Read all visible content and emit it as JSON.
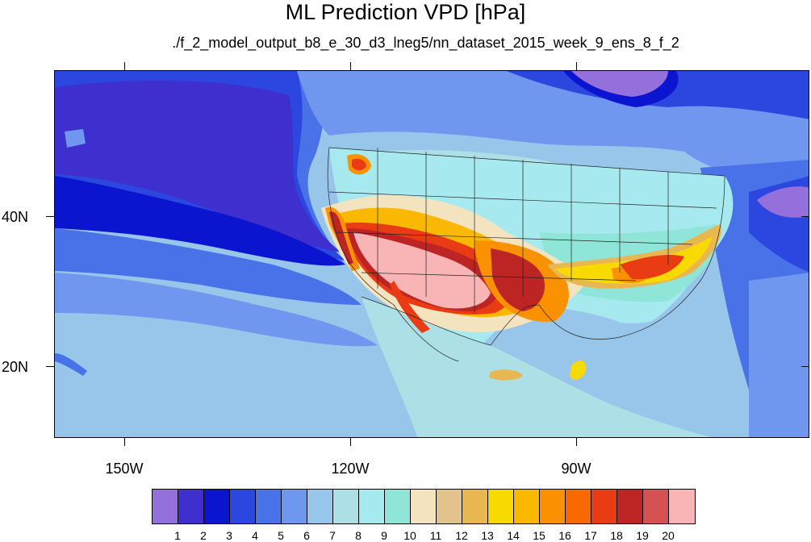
{
  "title": "ML Prediction VPD [hPa]",
  "subtitle": "./f_2_model_output_b8_e_30_d3_lneg5/nn_dataset_2015_week_9_ens_8_f_2",
  "lon_labels": [
    "150W",
    "120W",
    "90W"
  ],
  "lat_labels": [
    "40N",
    "20N"
  ],
  "colorbar": {
    "labels": [
      "1",
      "2",
      "3",
      "4",
      "5",
      "6",
      "7",
      "8",
      "9",
      "10",
      "11",
      "12",
      "13",
      "14",
      "15",
      "16",
      "17",
      "18",
      "19",
      "20"
    ],
    "colors": [
      "#9370db",
      "#3f2fcf",
      "#0b14cf",
      "#2b47e0",
      "#4a72e8",
      "#6f97ef",
      "#97c6ea",
      "#acdfe6",
      "#a6eaf0",
      "#8fe6d8",
      "#f3e4bf",
      "#e2c38e",
      "#e8b751",
      "#f8d900",
      "#fbb800",
      "#fa9100",
      "#f86a00",
      "#e93b14",
      "#bd2424",
      "#d65252",
      "#f9b4b6"
    ]
  },
  "map": {
    "region": "North America and eastern Pacific",
    "lon_range": [
      -160,
      -60
    ],
    "lat_range": [
      10,
      59
    ],
    "features": [
      "coastlines",
      "US state boundaries",
      "Canada province boundaries",
      "Mexico state boundaries"
    ]
  }
}
